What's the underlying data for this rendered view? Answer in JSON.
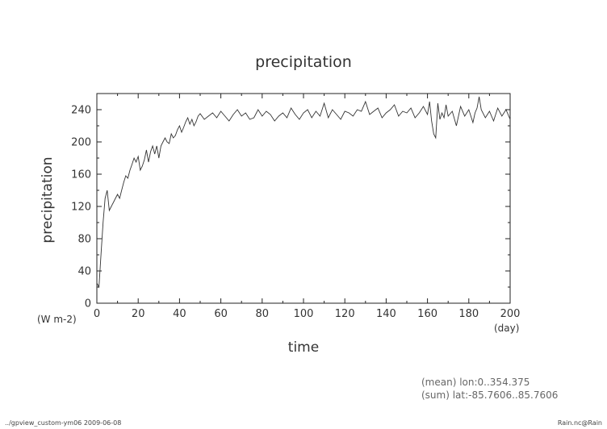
{
  "chart_data": {
    "type": "line",
    "title": "precipitation",
    "xlabel": "time",
    "ylabel": "precipitation",
    "xunits": "(day)",
    "yunits": "(W m-2)",
    "xlim": [
      0,
      200
    ],
    "ylim": [
      0,
      260
    ],
    "xticks": [
      "0",
      "20",
      "40",
      "60",
      "80",
      "100",
      "120",
      "140",
      "160",
      "180",
      "200"
    ],
    "yticks": [
      "0",
      "40",
      "80",
      "120",
      "160",
      "200",
      "240"
    ],
    "grid": false,
    "series": [
      {
        "x": [
          0,
          1,
          2,
          3,
          4,
          5,
          6,
          7,
          8,
          9,
          10,
          11,
          12,
          13,
          14,
          15,
          16,
          17,
          18,
          19,
          20,
          21,
          22,
          23,
          24,
          25,
          26,
          27,
          28,
          29,
          30,
          31,
          32,
          33,
          34,
          35,
          36,
          37,
          38,
          39,
          40,
          41,
          42,
          43,
          44,
          45,
          46,
          47,
          48,
          49,
          50,
          52,
          54,
          56,
          58,
          60,
          62,
          64,
          66,
          68,
          70,
          72,
          74,
          76,
          78,
          80,
          82,
          84,
          86,
          88,
          90,
          92,
          94,
          96,
          98,
          100,
          102,
          104,
          106,
          108,
          110,
          112,
          114,
          116,
          118,
          120,
          122,
          124,
          126,
          128,
          130,
          132,
          134,
          136,
          138,
          140,
          142,
          144,
          146,
          148,
          150,
          152,
          154,
          156,
          158,
          160,
          161,
          162,
          163,
          164,
          165,
          166,
          167,
          168,
          169,
          170,
          172,
          174,
          176,
          178,
          180,
          182,
          183,
          184,
          185,
          186,
          188,
          190,
          192,
          194,
          196,
          198,
          200
        ],
        "y": [
          25,
          20,
          60,
          100,
          130,
          140,
          115,
          120,
          125,
          130,
          135,
          130,
          140,
          150,
          158,
          155,
          165,
          172,
          180,
          175,
          182,
          165,
          170,
          178,
          190,
          175,
          188,
          195,
          185,
          195,
          180,
          195,
          200,
          205,
          200,
          198,
          210,
          205,
          208,
          215,
          220,
          212,
          218,
          225,
          230,
          222,
          228,
          220,
          225,
          232,
          235,
          228,
          232,
          236,
          230,
          238,
          232,
          226,
          234,
          240,
          232,
          236,
          228,
          230,
          240,
          232,
          238,
          234,
          226,
          232,
          236,
          230,
          242,
          234,
          228,
          236,
          240,
          230,
          238,
          232,
          248,
          230,
          240,
          234,
          228,
          238,
          236,
          232,
          240,
          238,
          250,
          234,
          238,
          242,
          230,
          236,
          240,
          246,
          232,
          238,
          236,
          242,
          230,
          236,
          244,
          234,
          250,
          226,
          210,
          205,
          248,
          228,
          236,
          230,
          246,
          232,
          238,
          220,
          244,
          232,
          240,
          224,
          236,
          242,
          256,
          240,
          230,
          238,
          226,
          242,
          232,
          240,
          228
        ]
      }
    ]
  },
  "footer": {
    "left_text": "../gpview_custom-ym06  2009-06-08",
    "right_text": "Rain.nc@Rain",
    "info_mean": "(mean) lon:0..354.375",
    "info_sum": "(sum) lat:-85.7606..85.7606"
  },
  "colors": {
    "line": "#333333",
    "axis": "#222222",
    "text": "#333333"
  }
}
